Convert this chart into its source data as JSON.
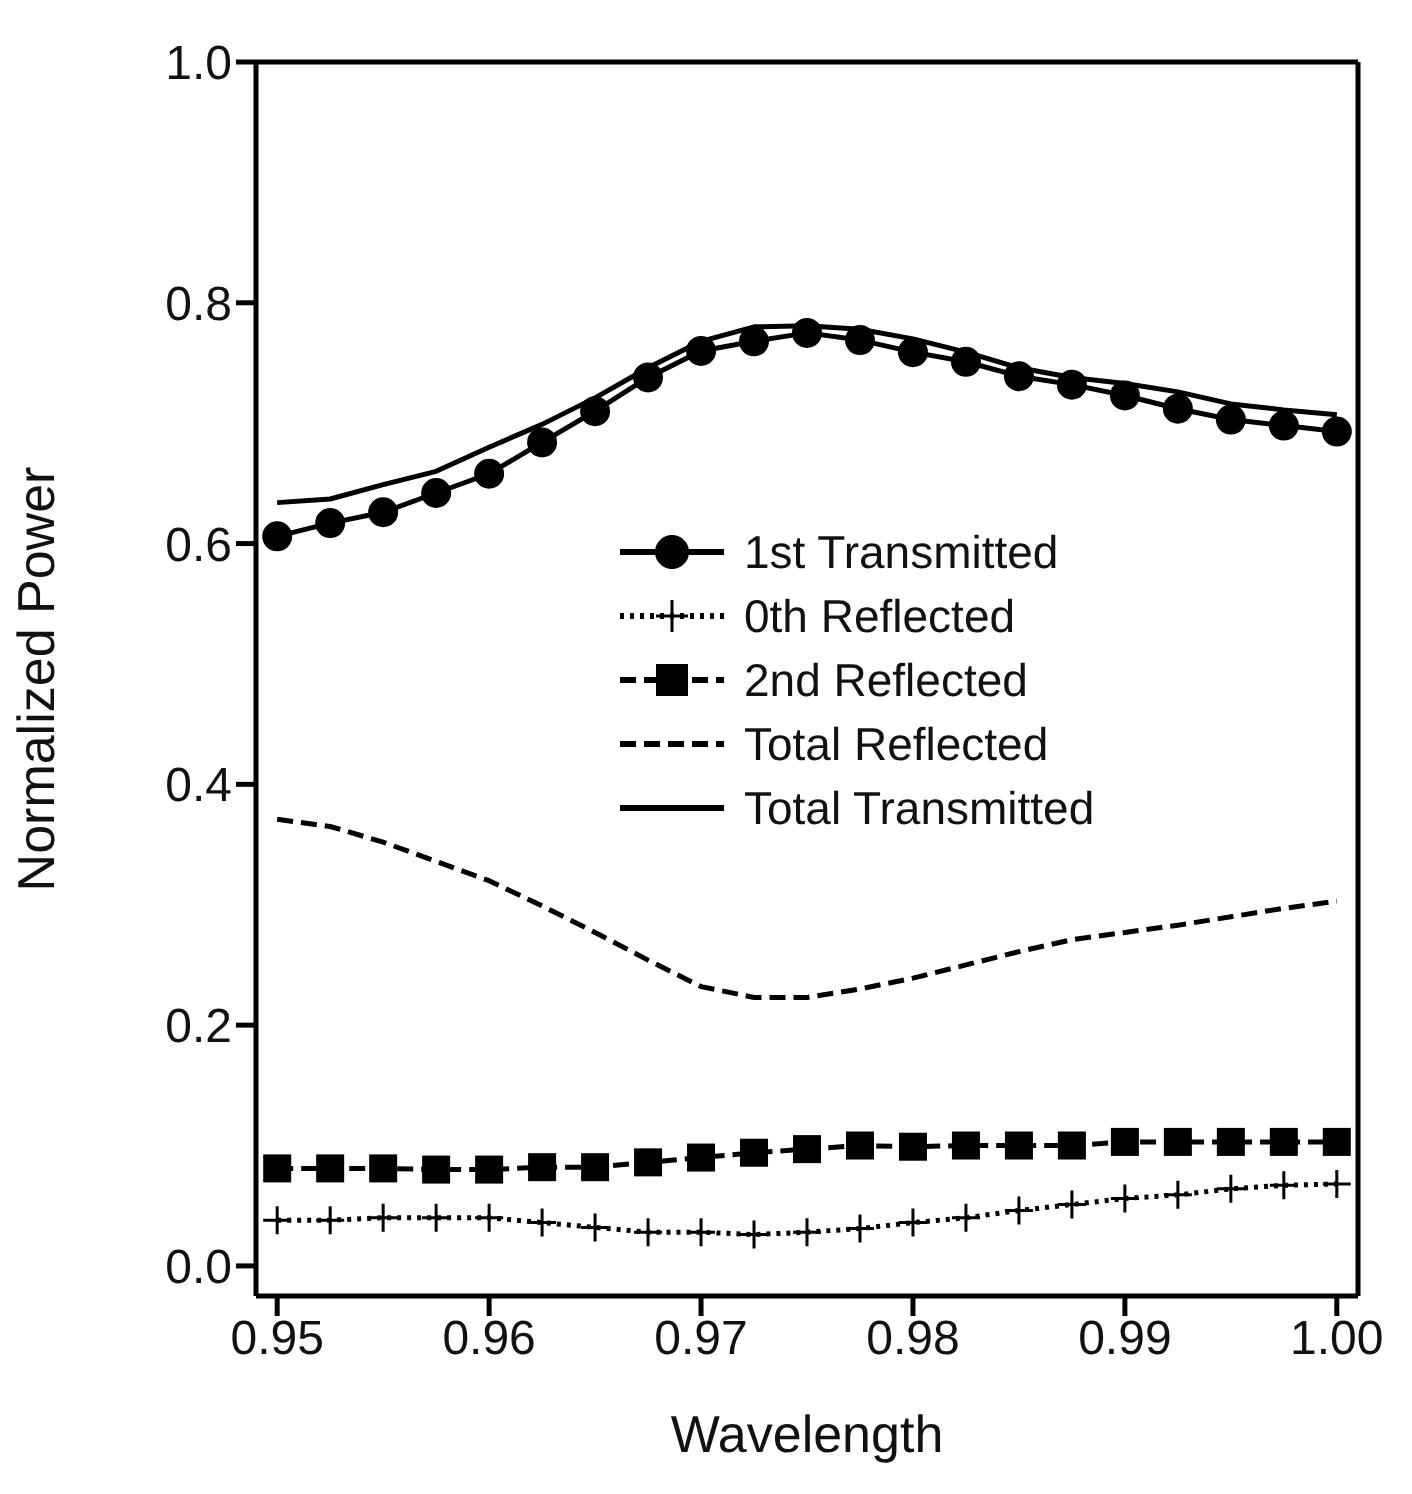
{
  "chart_data": {
    "type": "line",
    "xlabel": "Wavelength",
    "ylabel": "Normalized Power",
    "x": [
      0.95,
      0.9525,
      0.955,
      0.9575,
      0.96,
      0.9625,
      0.965,
      0.9675,
      0.97,
      0.9725,
      0.975,
      0.9775,
      0.98,
      0.9825,
      0.985,
      0.9875,
      0.99,
      0.9925,
      0.995,
      0.9975,
      1.0
    ],
    "series": [
      {
        "name": "1st Transmitted",
        "color": "#000000",
        "marker": "circle",
        "line_style": "solid",
        "values": [
          0.606,
          0.617,
          0.626,
          0.642,
          0.658,
          0.684,
          0.71,
          0.738,
          0.76,
          0.768,
          0.775,
          0.769,
          0.759,
          0.751,
          0.739,
          0.732,
          0.723,
          0.712,
          0.703,
          0.698,
          0.693
        ]
      },
      {
        "name": "0th Reflected",
        "color": "#000000",
        "marker": "cross",
        "line_style": "dotted",
        "values": [
          0.038,
          0.038,
          0.04,
          0.04,
          0.04,
          0.036,
          0.032,
          0.028,
          0.028,
          0.026,
          0.028,
          0.031,
          0.036,
          0.04,
          0.046,
          0.051,
          0.056,
          0.059,
          0.064,
          0.067,
          0.068
        ]
      },
      {
        "name": "2nd Reflected",
        "color": "#000000",
        "marker": "square",
        "line_style": "dashed",
        "values": [
          0.081,
          0.081,
          0.081,
          0.08,
          0.08,
          0.082,
          0.082,
          0.086,
          0.09,
          0.094,
          0.097,
          0.1,
          0.099,
          0.1,
          0.1,
          0.1,
          0.103,
          0.103,
          0.103,
          0.103,
          0.103
        ]
      },
      {
        "name": "Total Reflected",
        "color": "#000000",
        "marker": "none",
        "line_style": "dashed",
        "values": [
          0.371,
          0.365,
          0.352,
          0.336,
          0.32,
          0.299,
          0.277,
          0.254,
          0.232,
          0.223,
          0.223,
          0.23,
          0.239,
          0.25,
          0.261,
          0.271,
          0.277,
          0.283,
          0.29,
          0.297,
          0.303
        ]
      },
      {
        "name": "Total Transmitted",
        "color": "#000000",
        "marker": "none",
        "line_style": "solid",
        "values": [
          0.634,
          0.637,
          0.649,
          0.66,
          0.68,
          0.699,
          0.721,
          0.746,
          0.768,
          0.78,
          0.781,
          0.778,
          0.77,
          0.759,
          0.746,
          0.738,
          0.733,
          0.726,
          0.716,
          0.711,
          0.707
        ]
      }
    ],
    "xlim": [
      0.949,
      1.001
    ],
    "xticks": [
      0.95,
      0.96,
      0.97,
      0.98,
      0.99,
      {
        "value": 1.0,
        "label": "1.00"
      }
    ],
    "ylim": [
      -0.025,
      1.0
    ],
    "yticks": [
      {
        "value": 0,
        "label": "0.0"
      },
      0.2,
      0.4,
      0.6,
      0.8,
      {
        "value": 1.0,
        "label": "1.0"
      }
    ],
    "grid": false,
    "legend": "right"
  }
}
